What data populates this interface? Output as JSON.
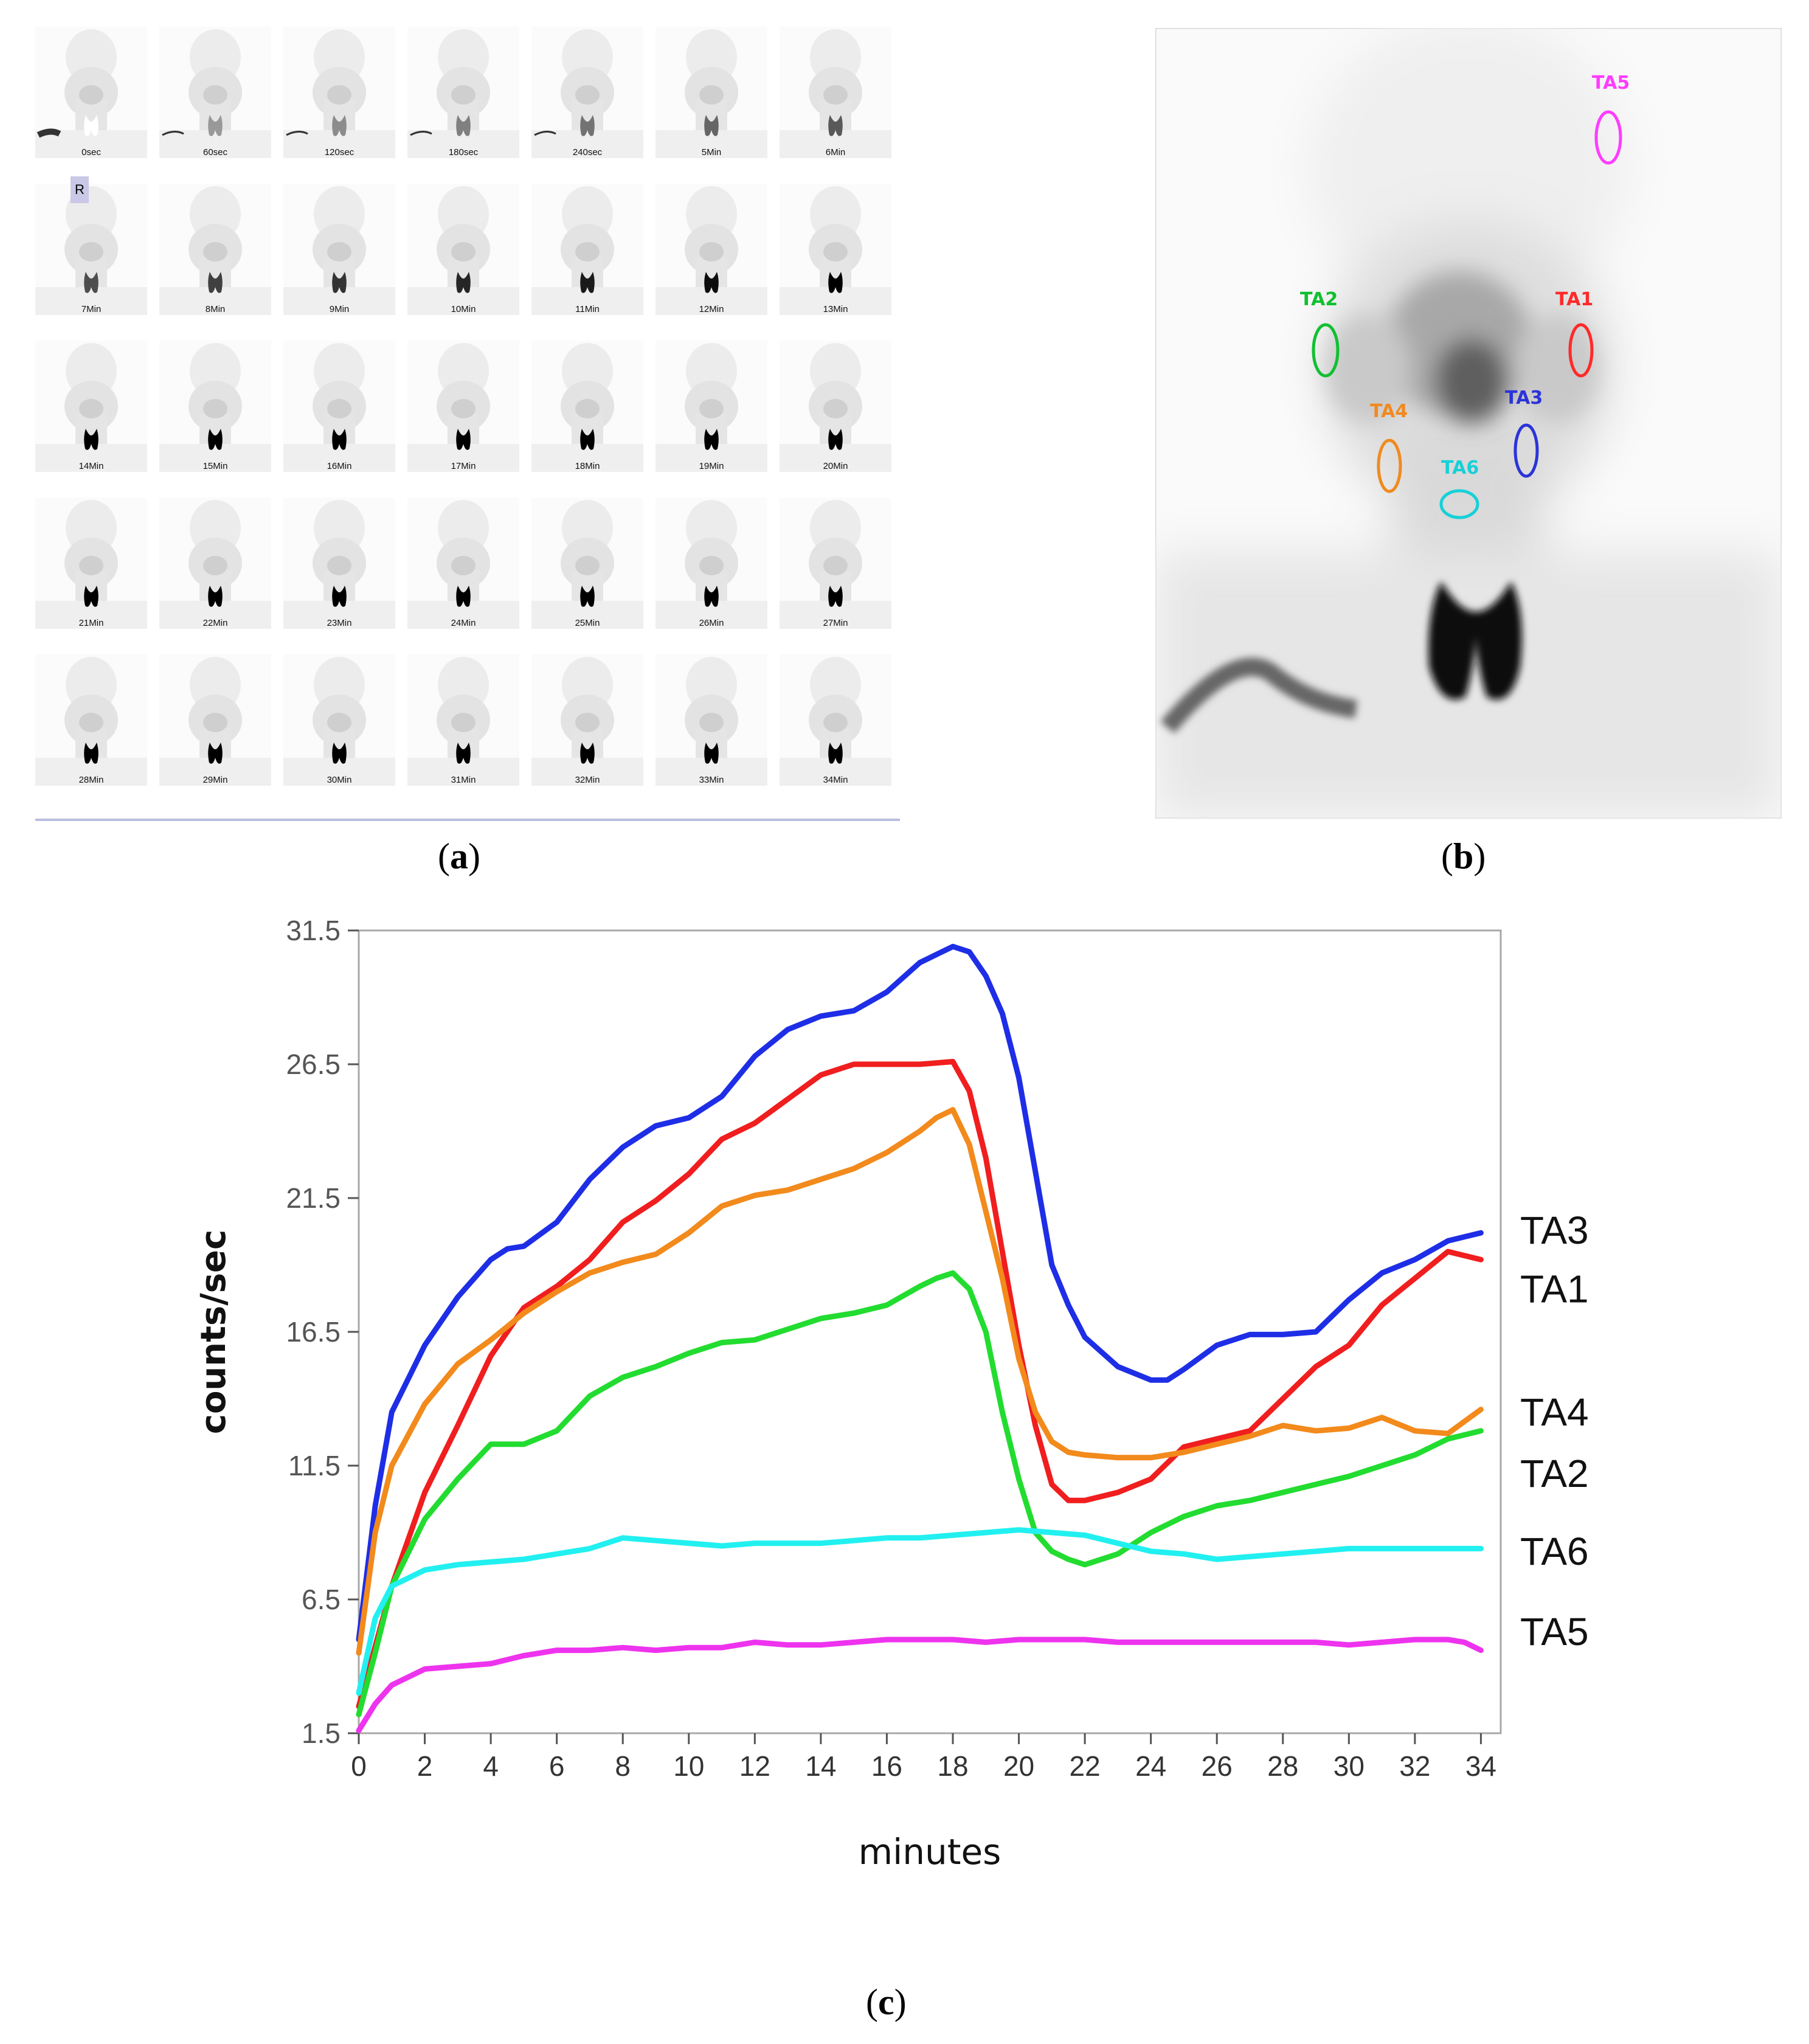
{
  "figure": {
    "captions": {
      "a": {
        "open": "(",
        "letter": "a",
        "close": ")"
      },
      "b": {
        "open": "(",
        "letter": "b",
        "close": ")"
      },
      "c": {
        "open": "(",
        "letter": "c",
        "close": ")"
      }
    },
    "panel_a": {
      "orientation_marker": "R",
      "frames": [
        "0sec",
        "60sec",
        "120sec",
        "180sec",
        "240sec",
        "5Min",
        "6Min",
        "7Min",
        "8Min",
        "9Min",
        "10Min",
        "11Min",
        "12Min",
        "13Min",
        "14Min",
        "15Min",
        "16Min",
        "17Min",
        "18Min",
        "19Min",
        "20Min",
        "21Min",
        "22Min",
        "23Min",
        "24Min",
        "25Min",
        "26Min",
        "27Min",
        "28Min",
        "29Min",
        "30Min",
        "31Min",
        "32Min",
        "33Min",
        "34Min"
      ]
    },
    "panel_b": {
      "rois": [
        {
          "label": "TA5",
          "color": "#ff3cff"
        },
        {
          "label": "TA2",
          "color": "#10c030"
        },
        {
          "label": "TA1",
          "color": "#ff2a2a"
        },
        {
          "label": "TA4",
          "color": "#f08a20"
        },
        {
          "label": "TA3",
          "color": "#2b34d8"
        },
        {
          "label": "TA6",
          "color": "#18d0d8"
        }
      ]
    }
  },
  "chart_data": {
    "type": "line",
    "xlabel": "minutes",
    "ylabel": "counts/sec",
    "xlim": [
      0,
      34.6
    ],
    "ylim": [
      1.5,
      31.5
    ],
    "xticks": [
      0,
      2,
      4,
      6,
      8,
      10,
      12,
      14,
      16,
      18,
      20,
      22,
      24,
      26,
      28,
      30,
      32,
      34
    ],
    "yticks": [
      1.5,
      6.5,
      11.5,
      16.5,
      21.5,
      26.5,
      31.5
    ],
    "ytick_labels": [
      "1.5",
      "6.5",
      "11.5",
      "16.5",
      "21.5",
      "26.5",
      "31.5"
    ],
    "grid": false,
    "legend": "inline right of plot",
    "series": [
      {
        "name": "TA3",
        "color": "#1e2ee6",
        "x": [
          0,
          0.5,
          1,
          2,
          3,
          4,
          4.5,
          5,
          6,
          7,
          8,
          9,
          10,
          11,
          12,
          13,
          14,
          14.5,
          15,
          16,
          17,
          17.5,
          18,
          18.5,
          19,
          19.5,
          20,
          20.5,
          21,
          21.5,
          22,
          23,
          24,
          24.5,
          25,
          26,
          27,
          28,
          29,
          30,
          31,
          32,
          33,
          34
        ],
        "y": [
          5,
          10,
          13.5,
          16,
          17.8,
          19.2,
          19.6,
          19.7,
          20.6,
          22.2,
          23.4,
          24.2,
          24.5,
          25.3,
          26.8,
          27.8,
          28.3,
          28.4,
          28.5,
          29.2,
          30.3,
          30.6,
          30.9,
          30.7,
          29.8,
          28.4,
          26,
          22.5,
          19,
          17.5,
          16.3,
          15.2,
          14.7,
          14.7,
          15.1,
          16,
          16.4,
          16.4,
          16.5,
          17.7,
          18.7,
          19.2,
          19.9,
          20.2
        ]
      },
      {
        "name": "TA1",
        "color": "#f01e1e",
        "x": [
          0,
          1,
          2,
          3,
          4,
          5,
          6,
          7,
          8,
          9,
          10,
          11,
          12,
          13,
          14,
          15,
          16,
          17,
          18,
          18.5,
          19,
          19.5,
          20,
          20.5,
          21,
          21.5,
          22,
          23,
          24,
          25,
          26,
          27,
          28,
          29,
          30,
          31,
          32,
          33,
          34
        ],
        "y": [
          2.5,
          7,
          10.5,
          13,
          15.6,
          17.4,
          18.2,
          19.2,
          20.6,
          21.4,
          22.4,
          23.7,
          24.3,
          25.2,
          26.1,
          26.5,
          26.5,
          26.5,
          26.6,
          25.5,
          23,
          19.5,
          16,
          13,
          10.8,
          10.2,
          10.2,
          10.5,
          11,
          12.2,
          12.5,
          12.8,
          14,
          15.2,
          16,
          17.5,
          18.5,
          19.5,
          19.2
        ]
      },
      {
        "name": "TA4",
        "color": "#f28a1c",
        "x": [
          0,
          0.5,
          1,
          2,
          3,
          4,
          5,
          6,
          7,
          8,
          9,
          10,
          11,
          12,
          13,
          14,
          15,
          16,
          17,
          17.5,
          18,
          18.5,
          19,
          19.5,
          20,
          20.5,
          21,
          21.5,
          22,
          23,
          24,
          25,
          26,
          27,
          28,
          29,
          30,
          31,
          32,
          33,
          34
        ],
        "y": [
          4.5,
          9,
          11.5,
          13.8,
          15.3,
          16.2,
          17.2,
          18,
          18.7,
          19.1,
          19.4,
          20.2,
          21.2,
          21.6,
          21.8,
          22.2,
          22.6,
          23.2,
          24,
          24.5,
          24.8,
          23.5,
          21,
          18.5,
          15.5,
          13.5,
          12.4,
          12,
          11.9,
          11.8,
          11.8,
          12,
          12.3,
          12.6,
          13,
          12.8,
          12.9,
          13.3,
          12.8,
          12.7,
          13.6
        ]
      },
      {
        "name": "TA2",
        "color": "#22dc30",
        "x": [
          0,
          0.5,
          1,
          2,
          3,
          4,
          5,
          6,
          7,
          8,
          9,
          10,
          11,
          12,
          13,
          14,
          15,
          16,
          17,
          17.5,
          18,
          18.5,
          19,
          19.5,
          20,
          20.5,
          21,
          21.5,
          22,
          23,
          24,
          25,
          26,
          27,
          28,
          29,
          30,
          31,
          32,
          33,
          34
        ],
        "y": [
          2.2,
          4.5,
          7,
          9.5,
          11,
          12.3,
          12.3,
          12.8,
          14.1,
          14.8,
          15.2,
          15.7,
          16.1,
          16.2,
          16.6,
          17,
          17.2,
          17.5,
          18.2,
          18.5,
          18.7,
          18.1,
          16.5,
          13.5,
          11,
          9,
          8.3,
          8,
          7.8,
          8.2,
          9,
          9.6,
          10,
          10.2,
          10.5,
          10.8,
          11.1,
          11.5,
          11.9,
          12.5,
          12.8
        ]
      },
      {
        "name": "TA6",
        "color": "#22f0f0",
        "x": [
          0,
          0.5,
          1,
          2,
          3,
          4,
          5,
          6,
          7,
          8,
          9,
          10,
          11,
          12,
          13,
          14,
          15,
          16,
          17,
          18,
          19,
          20,
          21,
          22,
          23,
          24,
          25,
          26,
          27,
          28,
          29,
          30,
          31,
          32,
          33,
          34
        ],
        "y": [
          3,
          5.8,
          7,
          7.6,
          7.8,
          7.9,
          8,
          8.2,
          8.4,
          8.8,
          8.7,
          8.6,
          8.5,
          8.6,
          8.6,
          8.6,
          8.7,
          8.8,
          8.8,
          8.9,
          9,
          9.1,
          9,
          8.9,
          8.6,
          8.3,
          8.2,
          8,
          8.1,
          8.2,
          8.3,
          8.4,
          8.4,
          8.4,
          8.4,
          8.4
        ]
      },
      {
        "name": "TA5",
        "color": "#ee33ee",
        "x": [
          0,
          0.5,
          1,
          2,
          3,
          4,
          5,
          6,
          7,
          8,
          9,
          10,
          11,
          12,
          13,
          14,
          15,
          16,
          17,
          18,
          19,
          20,
          21,
          22,
          23,
          24,
          25,
          26,
          27,
          28,
          29,
          30,
          31,
          32,
          33,
          33.5,
          34
        ],
        "y": [
          1.6,
          2.6,
          3.3,
          3.9,
          4,
          4.1,
          4.4,
          4.6,
          4.6,
          4.7,
          4.6,
          4.7,
          4.7,
          4.9,
          4.8,
          4.8,
          4.9,
          5,
          5,
          5,
          4.9,
          5,
          5,
          5,
          4.9,
          4.9,
          4.9,
          4.9,
          4.9,
          4.9,
          4.9,
          4.8,
          4.9,
          5,
          5,
          4.9,
          4.6
        ]
      }
    ]
  }
}
